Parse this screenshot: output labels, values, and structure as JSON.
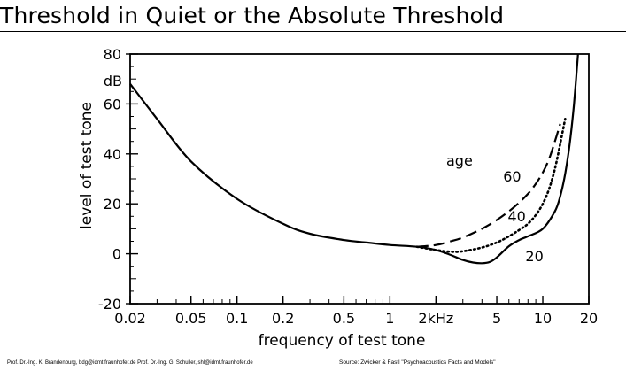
{
  "slide": {
    "title": "Threshold in Quiet or the Absolute Threshold",
    "footer_left": "Prof. Dr.-Ing. K. Brandenburg, bdg@idmt.fraunhofer.de Prof. Dr.-Ing. G. Schuller, shl@idmt.fraunhofer.de",
    "footer_right": "Source: Zwicker & Fastl \"Psychoacoustics Facts and Models\""
  },
  "chart_data": {
    "type": "line",
    "title": "",
    "xlabel": "frequency of test tone",
    "ylabel": "level of test tone",
    "y_unit": "dB",
    "x_scale": "log",
    "xlim": [
      0.02,
      20
    ],
    "ylim": [
      -20,
      80
    ],
    "x_ticks": [
      0.02,
      0.05,
      0.1,
      0.2,
      0.5,
      1,
      2,
      5,
      10,
      20
    ],
    "x_tick_labels": [
      "0.02",
      "0.05",
      "0.1",
      "0.2",
      "0.5",
      "1",
      "2kHz",
      "5",
      "10",
      "20"
    ],
    "y_ticks": [
      -20,
      0,
      20,
      40,
      60,
      80
    ],
    "y_tick_labels": [
      "-20",
      "0",
      "20",
      "40",
      "60",
      "80"
    ],
    "grid": false,
    "legend_title": "age",
    "series": [
      {
        "name": "20",
        "style": "solid",
        "x": [
          0.02,
          0.03,
          0.05,
          0.1,
          0.2,
          0.3,
          0.5,
          0.7,
          1,
          1.5,
          2,
          2.5,
          3,
          3.5,
          4,
          4.5,
          5,
          6,
          7,
          8,
          10,
          12,
          13,
          14,
          15,
          16,
          17
        ],
        "y": [
          68,
          54,
          37,
          22,
          12,
          8,
          5.5,
          4.5,
          3.5,
          2.8,
          1.5,
          -0.5,
          -2.5,
          -3.5,
          -3.8,
          -3.3,
          -1.5,
          3,
          5.5,
          7,
          10,
          17,
          23,
          32,
          44,
          60,
          80
        ]
      },
      {
        "name": "40",
        "style": "dotted",
        "x": [
          1.5,
          2,
          2.5,
          3,
          4,
          5,
          6,
          7,
          8,
          9,
          10,
          11,
          12,
          13,
          14
        ],
        "y": [
          2.8,
          1.5,
          0.8,
          1,
          2.5,
          4.5,
          7,
          9.5,
          12,
          15.5,
          20,
          26,
          34,
          44,
          54
        ]
      },
      {
        "name": "60",
        "style": "dashed",
        "x": [
          1.5,
          2,
          2.5,
          3,
          4,
          5,
          6,
          7,
          8,
          9,
          10,
          11,
          12,
          13
        ],
        "y": [
          2.8,
          3.5,
          5,
          6.5,
          10,
          13.5,
          17,
          20.5,
          24,
          28,
          32.5,
          38,
          45,
          52
        ]
      }
    ]
  }
}
